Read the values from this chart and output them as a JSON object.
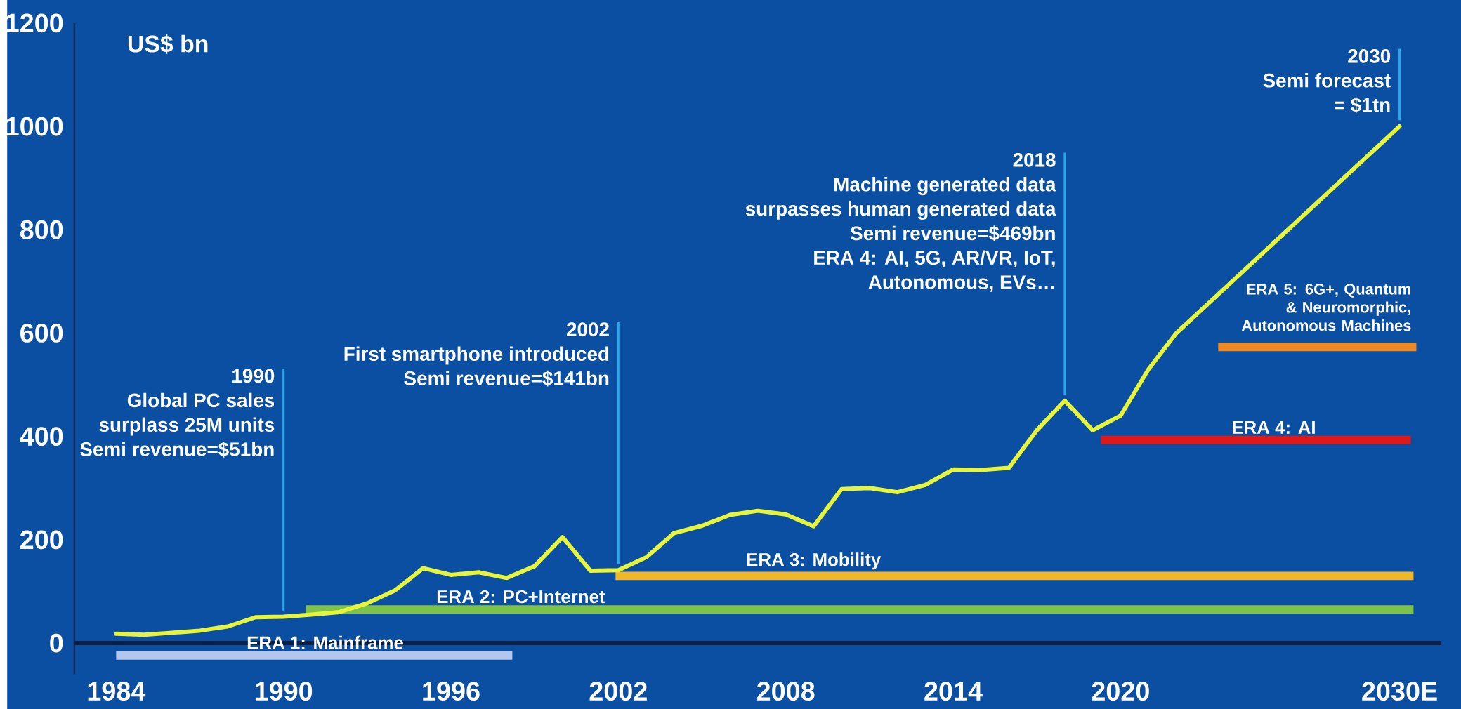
{
  "chart_data": {
    "type": "line",
    "ylabel": "US$ bn",
    "xlim": [
      1982.5,
      2031.5
    ],
    "ylim": [
      -60,
      1200
    ],
    "xticks": [
      1984,
      1990,
      1996,
      2002,
      2008,
      2014,
      2020,
      {
        "value": 2030,
        "label": "2030E"
      }
    ],
    "yticks": [
      0,
      200,
      400,
      600,
      800,
      1000,
      1200
    ],
    "series": [
      {
        "color": "#e6f43c",
        "x": [
          1984,
          1985,
          1986,
          1987,
          1988,
          1989,
          1990,
          1991,
          1992,
          1993,
          1994,
          1995,
          1996,
          1997,
          1998,
          1999,
          2000,
          2001,
          2002,
          2003,
          2004,
          2005,
          2006,
          2007,
          2008,
          2009,
          2010,
          2011,
          2012,
          2013,
          2014,
          2015,
          2016,
          2017,
          2018,
          2019,
          2020,
          2021,
          2022,
          2030
        ],
        "values": [
          18,
          16,
          20,
          24,
          32,
          50,
          51,
          55,
          60,
          77,
          102,
          145,
          132,
          137,
          126,
          149,
          205,
          140,
          141,
          166,
          213,
          227,
          248,
          256,
          249,
          226,
          298,
          300,
          292,
          306,
          336,
          335,
          339,
          412,
          469,
          412,
          440,
          530,
          600,
          1000
        ]
      },
      {
        "name": "ERA 1: Mainframe",
        "color": "#b4c6ec",
        "x": [
          1984,
          1998.2
        ],
        "values": [
          -24,
          -24
        ]
      },
      {
        "name": "ERA 2: PC+Internet",
        "color": "#7dc24a",
        "x": [
          1990.8,
          2030.5
        ],
        "values": [
          65,
          65
        ]
      },
      {
        "name": "ERA 3: Mobility",
        "color": "#f0b828",
        "x": [
          2001.9,
          2030.5
        ],
        "values": [
          130,
          130
        ]
      },
      {
        "name": "ERA 4: AI",
        "color": "#e01818",
        "x": [
          2019.3,
          2030.4
        ],
        "values": [
          393,
          393
        ]
      },
      {
        "name": "ERA 5: 6G+, Quantum & Neuromorphic, Autonomous Machines",
        "color": "#f08a20",
        "x": [
          2023.5,
          2030.6
        ],
        "values": [
          573,
          573
        ]
      }
    ],
    "annotations": [
      {
        "text": "1990",
        "x": 1990,
        "y": 51
      },
      "Global PC sales",
      "surplass 25M units",
      "Semi revenue=$51bn",
      {
        "text": "2002",
        "x": 2002,
        "y": 141
      },
      "First smartphone introduced",
      "Semi revenue=$141bn",
      {
        "text": "2018",
        "x": 2018,
        "y": 469
      },
      "Machine generated data",
      "surpasses human generated data",
      "Semi revenue=$469bn",
      "ERA 4: AI, 5G, AR/VR, IoT,",
      "Autonomous, EVs…",
      {
        "text": "2030",
        "x": 2030,
        "y": 1000
      },
      "Semi forecast",
      "= $1tn"
    ]
  }
}
